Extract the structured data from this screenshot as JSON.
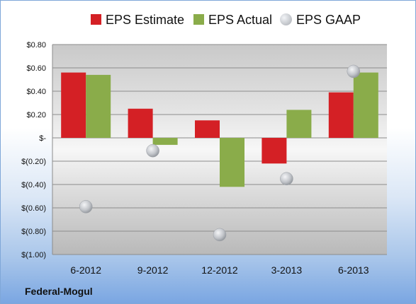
{
  "chart_data": {
    "type": "bar",
    "categories": [
      "6-2012",
      "9-2012",
      "12-2012",
      "3-2013",
      "6-2013"
    ],
    "series": [
      {
        "name": "EPS Estimate",
        "kind": "bar",
        "color": "#d42025",
        "values": [
          0.56,
          0.25,
          0.15,
          -0.22,
          0.39
        ]
      },
      {
        "name": "EPS Actual",
        "kind": "bar",
        "color": "#8aac4a",
        "values": [
          0.54,
          -0.06,
          -0.42,
          0.24,
          0.56
        ]
      },
      {
        "name": "EPS GAAP",
        "kind": "marker",
        "color": "#b9bcc1",
        "values": [
          -0.59,
          -0.11,
          -0.83,
          -0.35,
          0.57
        ]
      }
    ],
    "ylim": [
      -1.0,
      0.8
    ],
    "yticks": [
      0.8,
      0.6,
      0.4,
      0.2,
      0.0,
      -0.2,
      -0.4,
      -0.6,
      -0.8,
      -1.0
    ],
    "ytick_labels": [
      "$0.80",
      "$0.60",
      "$0.40",
      "$0.20",
      "$-",
      "$(0.20)",
      "$(0.40)",
      "$(0.60)",
      "$(0.80)",
      "$(1.00)"
    ],
    "grid": true,
    "legend_position": "top",
    "title": "",
    "xlabel": "",
    "ylabel": ""
  },
  "company": "Federal-Mogul"
}
